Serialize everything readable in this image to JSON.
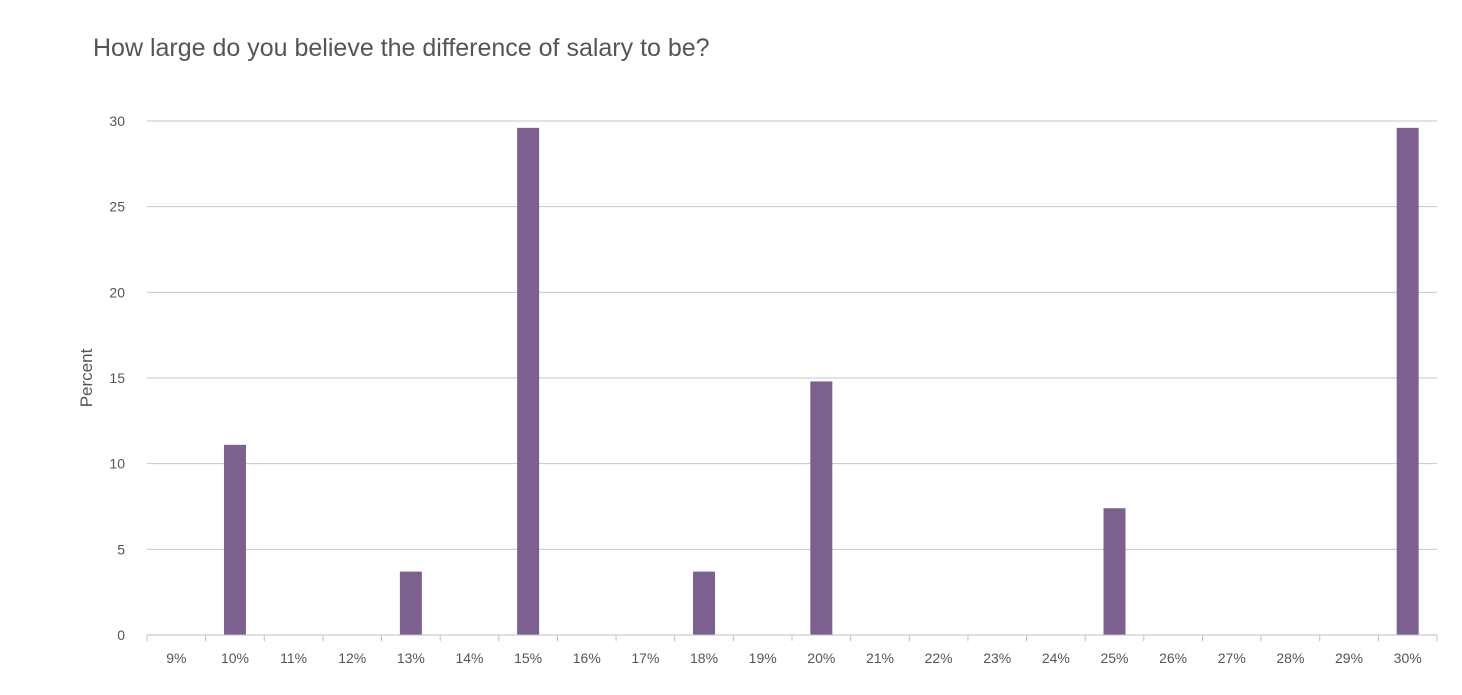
{
  "chart_data": {
    "type": "bar",
    "title": "How large do you believe the difference of salary to be?",
    "xlabel": "",
    "ylabel": "Percent",
    "ylim": [
      0,
      30
    ],
    "yticks": [
      0,
      5,
      10,
      15,
      20,
      25,
      30
    ],
    "grid": true,
    "legend": "none",
    "bar_color": "#7b6090",
    "categories": [
      "9%",
      "10%",
      "11%",
      "12%",
      "13%",
      "14%",
      "15%",
      "16%",
      "17%",
      "18%",
      "19%",
      "20%",
      "21%",
      "22%",
      "23%",
      "24%",
      "25%",
      "26%",
      "27%",
      "28%",
      "29%",
      "30%"
    ],
    "values": [
      0,
      11.1,
      0,
      0,
      3.7,
      0,
      29.6,
      0,
      0,
      3.7,
      0,
      14.8,
      0,
      0,
      0,
      0,
      7.4,
      0,
      0,
      0,
      0,
      29.6
    ]
  }
}
